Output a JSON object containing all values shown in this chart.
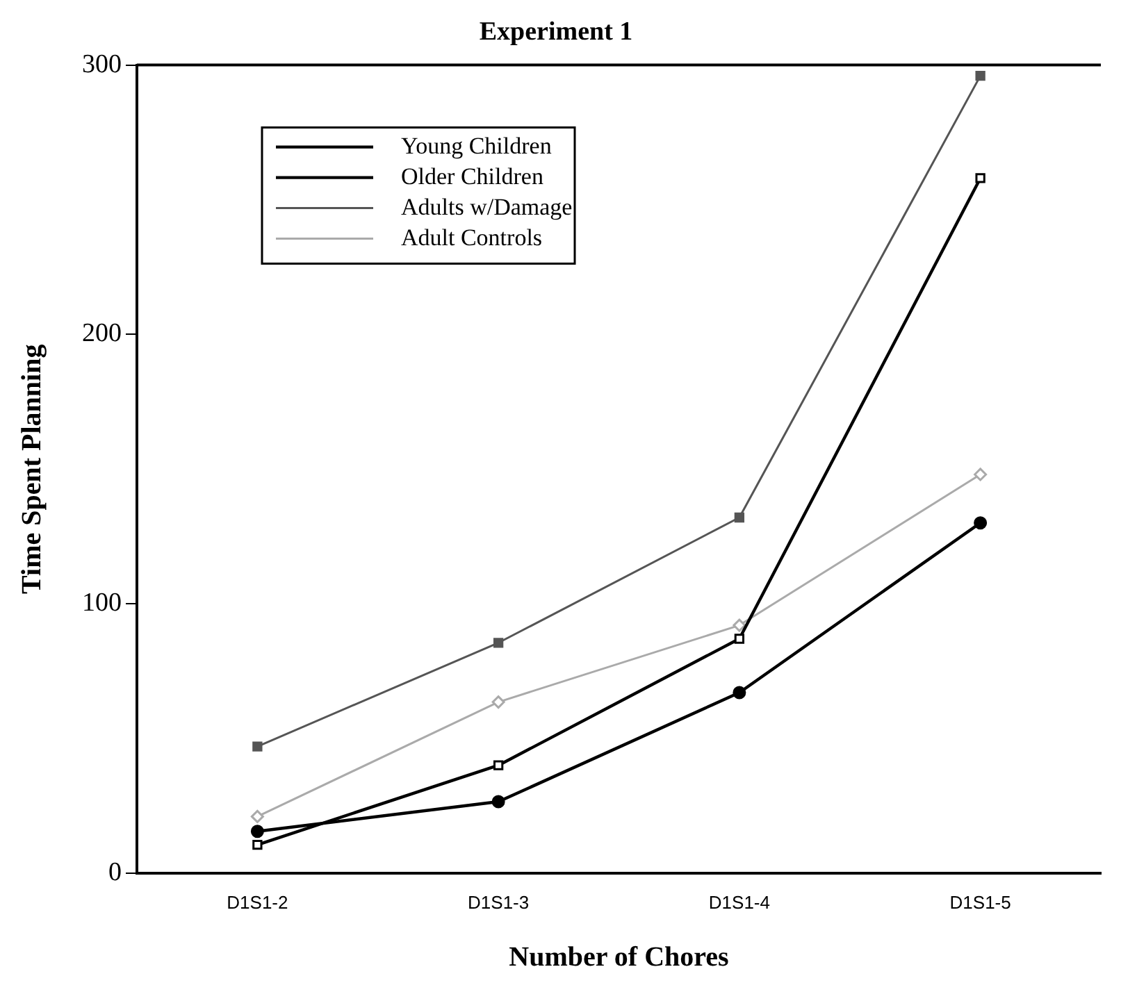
{
  "chart_data": {
    "type": "line",
    "title": "Experiment 1",
    "xlabel": "Number of Chores",
    "ylabel": "Time Spent Planning",
    "categories": [
      "D1S1-2",
      "D1S1-3",
      "D1S1-4",
      "D1S1-5"
    ],
    "series": [
      {
        "name": "Young Children",
        "color": "#000000",
        "marker": "square",
        "values": [
          10.5,
          40,
          87,
          258
        ]
      },
      {
        "name": "Older Children",
        "color": "#000000",
        "marker": "circle",
        "values": [
          15.5,
          26.5,
          67,
          130
        ]
      },
      {
        "name": "Adults w/Damage",
        "color": "#555555",
        "marker": "square",
        "values": [
          47,
          85.5,
          132,
          296
        ]
      },
      {
        "name": "Adult Controls",
        "color": "#aaaaaa",
        "marker": "diamond",
        "values": [
          21,
          63.5,
          92,
          148
        ]
      }
    ],
    "ylim": [
      0,
      300
    ],
    "yticks": [
      0,
      100,
      200,
      300
    ],
    "grid": false,
    "legend": "top left",
    "line_style": "solid"
  }
}
